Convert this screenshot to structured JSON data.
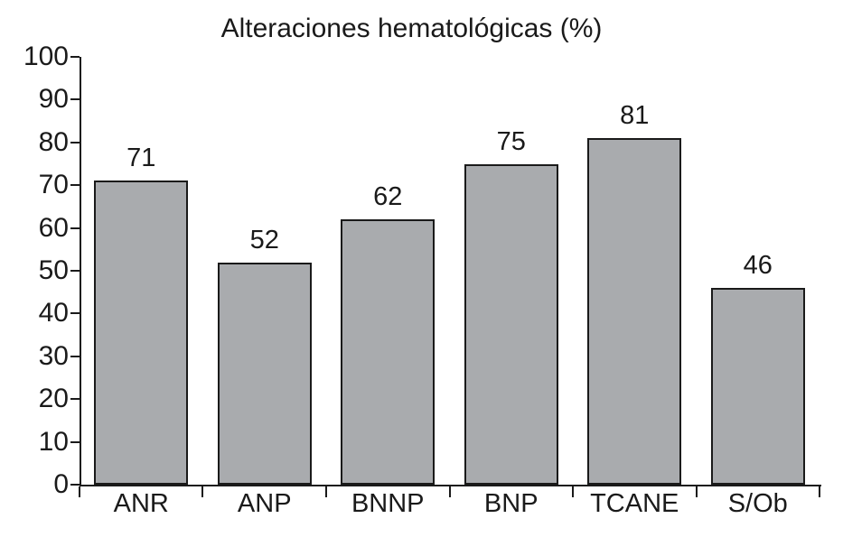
{
  "chart_data": {
    "type": "bar",
    "title": "Alteraciones hematológicas (%)",
    "categories": [
      "ANR",
      "ANP",
      "BNNP",
      "BNP",
      "TCANE",
      "S/Ob"
    ],
    "values": [
      71,
      52,
      62,
      75,
      81,
      46
    ],
    "bar_labels": [
      "71",
      "52",
      "62",
      "75",
      "81",
      "46"
    ],
    "xlabel": "",
    "ylabel": "",
    "ylim": [
      0,
      100
    ],
    "yticks": [
      0,
      10,
      20,
      30,
      40,
      50,
      60,
      70,
      80,
      90,
      100
    ],
    "grid": false,
    "legend": false,
    "colors": {
      "bar_fill": "#a9abae",
      "bar_border": "#1a1a1a",
      "axis": "#1a1a1a",
      "text": "#1a1a1a",
      "background": "#ffffff"
    }
  }
}
